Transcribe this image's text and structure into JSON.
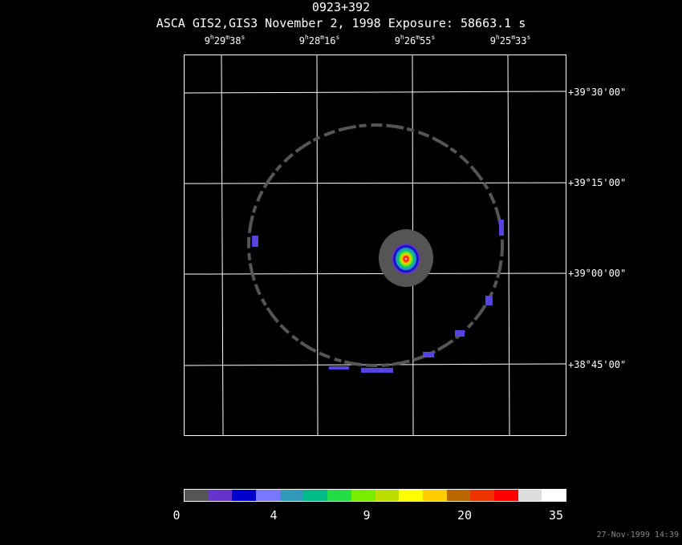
{
  "title": "0923+392",
  "subtitle": "ASCA GIS2,GIS3 November 2, 1998 Exposure: 58663.1 s",
  "ra_ticks": [
    {
      "h": "9",
      "m": "29",
      "s": "38"
    },
    {
      "h": "9",
      "m": "28",
      "s": "16"
    },
    {
      "h": "9",
      "m": "26",
      "s": "55"
    },
    {
      "h": "9",
      "m": "25",
      "s": "33"
    }
  ],
  "dec_ticks": [
    "+39°30'00\"",
    "+39°15'00\"",
    "+39°00'00\"",
    "+38°45'00\""
  ],
  "colorbar": {
    "colors": [
      "#555555",
      "#6633cc",
      "#0000cc",
      "#7777ff",
      "#3399bb",
      "#00bb88",
      "#22dd44",
      "#77ee00",
      "#bbdd00",
      "#ffff00",
      "#ffcc00",
      "#bb6600",
      "#ee3300",
      "#ff0000",
      "#dddddd",
      "#ffffff"
    ],
    "labels": [
      "0",
      "4",
      "9",
      "20",
      "35"
    ]
  },
  "timestamp": "27-Nov-1999 14:39"
}
